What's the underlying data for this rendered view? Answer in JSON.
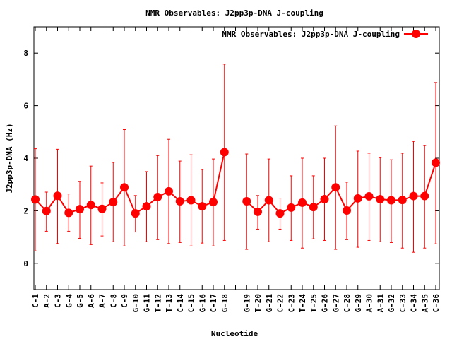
{
  "chart_data": {
    "type": "line",
    "title": "NMR Observables: J2pp3p-DNA J-coupling",
    "xlabel": "Nucleotide",
    "ylabel": "J2pp3p-DNA (Hz)",
    "ylim": [
      -1,
      9
    ],
    "yticks": [
      0,
      2,
      4,
      6,
      8
    ],
    "legend": {
      "label": "NMR Observables: J2pp3p-DNA J-coupling",
      "placement": "top-right"
    },
    "series_color": "#ff0000",
    "categories": [
      "C-1",
      "A-2",
      "C-3",
      "G-4",
      "G-5",
      "A-6",
      "A-7",
      "C-8",
      "C-9",
      "G-10",
      "G-11",
      "T-12",
      "T-13",
      "C-14",
      "C-15",
      "G-16",
      "C-17",
      "G-18",
      "",
      "G-19",
      "T-20",
      "G-21",
      "C-22",
      "C-23",
      "T-24",
      "T-25",
      "G-26",
      "G-27",
      "C-28",
      "G-29",
      "A-30",
      "A-31",
      "G-32",
      "C-33",
      "C-34",
      "A-35",
      "C-36"
    ],
    "values": [
      2.43,
      1.99,
      2.57,
      1.92,
      2.06,
      2.22,
      2.07,
      2.33,
      2.89,
      1.9,
      2.17,
      2.52,
      2.74,
      2.36,
      2.4,
      2.17,
      2.33,
      4.23,
      null,
      2.36,
      1.96,
      2.4,
      1.9,
      2.12,
      2.31,
      2.14,
      2.44,
      2.89,
      2.01,
      2.47,
      2.55,
      2.44,
      2.4,
      2.41,
      2.56,
      2.56,
      3.83
    ],
    "err_high": [
      4.36,
      2.71,
      4.34,
      2.64,
      3.12,
      3.7,
      3.06,
      3.84,
      5.09,
      2.58,
      3.49,
      4.1,
      4.72,
      3.89,
      4.13,
      3.57,
      3.97,
      7.58,
      null,
      4.16,
      2.58,
      3.97,
      2.48,
      3.33,
      4.0,
      3.33,
      4.0,
      5.23,
      3.09,
      4.27,
      4.19,
      4.02,
      3.94,
      4.19,
      4.64,
      4.48,
      6.88
    ],
    "err_low": [
      0.47,
      1.22,
      0.75,
      1.22,
      0.95,
      0.71,
      1.04,
      0.82,
      0.66,
      1.19,
      0.82,
      0.9,
      0.75,
      0.79,
      0.66,
      0.77,
      0.66,
      0.87,
      null,
      0.53,
      1.3,
      0.82,
      1.3,
      0.87,
      0.58,
      0.93,
      0.87,
      0.53,
      0.9,
      0.61,
      0.87,
      0.82,
      0.79,
      0.58,
      0.42,
      0.58,
      0.74
    ]
  }
}
